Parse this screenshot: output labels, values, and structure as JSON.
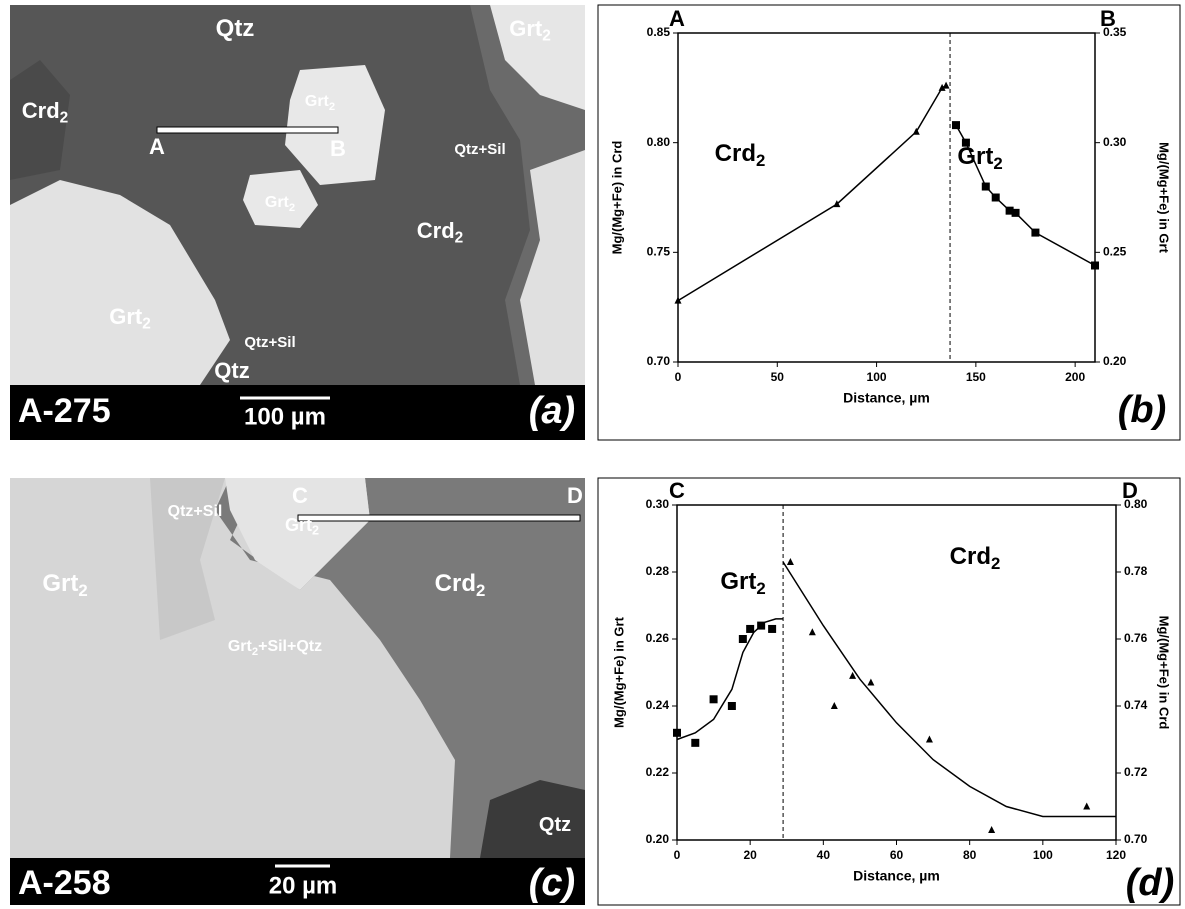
{
  "micrographs": [
    {
      "sample": "A-275",
      "scale_bar": "100 µm",
      "panel_label": "(a)",
      "profile": [
        "A",
        "B"
      ],
      "labels": [
        {
          "text": "Qtz"
        },
        {
          "text": "Grt",
          "sub": "2"
        },
        {
          "text": "Crd",
          "sub": "2"
        },
        {
          "text": "Grt",
          "sub": "2"
        },
        {
          "text": "Qtz+Sil"
        },
        {
          "text": "Grt",
          "sub": "2"
        },
        {
          "text": "Crd",
          "sub": "2"
        },
        {
          "text": "Grt",
          "sub": "2"
        },
        {
          "text": "Qtz+Sil"
        },
        {
          "text": "Qtz"
        }
      ]
    },
    {
      "sample": "A-258",
      "scale_bar": "20 µm",
      "panel_label": "(c)",
      "profile": [
        "C",
        "D"
      ],
      "labels": [
        {
          "text": "Qtz+Sil"
        },
        {
          "text": "Grt",
          "sub": "2"
        },
        {
          "text": "Grt",
          "sub": "2"
        },
        {
          "text": "Crd",
          "sub": "2"
        },
        {
          "text": "Grt",
          "sub": "2",
          "after": "+Sil+Qtz"
        },
        {
          "text": "Qtz"
        }
      ]
    }
  ],
  "chart_data": [
    {
      "type": "scatter",
      "panel_label": "(b)",
      "end_labels": [
        "A",
        "B"
      ],
      "xlabel": "Distance, µm",
      "ylabel": "Mg/(Mg+Fe) in Crd",
      "y2label": "Mg/(Mg+Fe) in Grt",
      "xlim": [
        0,
        210
      ],
      "xticks": [
        0,
        50,
        100,
        150,
        200
      ],
      "ylim": [
        0.7,
        0.85
      ],
      "yticks": [
        {
          "value": 0.7,
          "label": "0.70"
        },
        {
          "value": 0.75,
          "label": "0.75"
        },
        {
          "value": 0.8,
          "label": "0.80"
        },
        {
          "value": 0.85,
          "label": "0.85"
        }
      ],
      "y2lim": [
        0.2,
        0.35
      ],
      "y2ticks": [
        {
          "value": 0.2,
          "label": "0.20"
        },
        {
          "value": 0.25,
          "label": "0.25"
        },
        {
          "value": 0.3,
          "label": "0.30"
        },
        {
          "value": 0.35,
          "label": "0.35"
        }
      ],
      "boundary": 137,
      "annotations": [
        {
          "text": "Crd",
          "sub": "2"
        },
        {
          "text": "Grt",
          "sub": "2"
        }
      ],
      "series": [
        {
          "marker": "triangle",
          "line": true,
          "color": "#000000",
          "x": [
            0,
            80,
            120,
            133,
            135
          ],
          "values": [
            0.728,
            0.772,
            0.805,
            0.825,
            0.826
          ]
        },
        {
          "marker": "square",
          "line": true,
          "axis": "y2",
          "color": "#000000",
          "x": [
            140,
            145,
            155,
            160,
            167,
            170,
            180,
            210
          ],
          "values": [
            0.308,
            0.3,
            0.28,
            0.275,
            0.269,
            0.268,
            0.259,
            0.244
          ]
        }
      ]
    },
    {
      "type": "scatter",
      "panel_label": "(d)",
      "end_labels": [
        "C",
        "D"
      ],
      "xlabel": "Distance,  µm",
      "ylabel": "Mg/(Mg+Fe) in Grt",
      "y2label": "Mg/(Mg+Fe) in Crd",
      "xlim": [
        0,
        120
      ],
      "xticks": [
        0,
        20,
        40,
        60,
        80,
        100,
        120
      ],
      "ylim": [
        0.2,
        0.3
      ],
      "yticks": [
        {
          "value": 0.2,
          "label": "0.20"
        },
        {
          "value": 0.22,
          "label": "0.22"
        },
        {
          "value": 0.24,
          "label": "0.24"
        },
        {
          "value": 0.26,
          "label": "0.26"
        },
        {
          "value": 0.28,
          "label": "0.28"
        },
        {
          "value": 0.3,
          "label": "0.30"
        }
      ],
      "y2lim": [
        0.7,
        0.8
      ],
      "y2ticks": [
        {
          "value": 0.7,
          "label": "0.70"
        },
        {
          "value": 0.72,
          "label": "0.72"
        },
        {
          "value": 0.74,
          "label": "0.74"
        },
        {
          "value": 0.76,
          "label": "0.76"
        },
        {
          "value": 0.78,
          "label": "0.78"
        },
        {
          "value": 0.8,
          "label": "0.80"
        }
      ],
      "boundary": 29,
      "annotations": [
        {
          "text": "Grt",
          "sub": "2"
        },
        {
          "text": "Crd",
          "sub": "2"
        }
      ],
      "series": [
        {
          "marker": "square",
          "line": false,
          "color": "#000000",
          "x": [
            0,
            5,
            10,
            15,
            18,
            20,
            23,
            26
          ],
          "values": [
            0.232,
            0.229,
            0.242,
            0.24,
            0.26,
            0.263,
            0.264,
            0.263
          ]
        },
        {
          "marker": "none",
          "line": true,
          "color": "#000000",
          "x": [
            0,
            5,
            10,
            15,
            18,
            21,
            24,
            27,
            29
          ],
          "values": [
            0.23,
            0.232,
            0.236,
            0.245,
            0.256,
            0.262,
            0.265,
            0.266,
            0.266
          ]
        },
        {
          "marker": "triangle",
          "line": false,
          "axis": "y2",
          "color": "#000000",
          "x": [
            31,
            37,
            43,
            48,
            53,
            69,
            86,
            112
          ],
          "values": [
            0.783,
            0.762,
            0.74,
            0.749,
            0.747,
            0.73,
            0.703,
            0.71
          ]
        },
        {
          "marker": "none",
          "line": true,
          "axis": "y2",
          "color": "#000000",
          "x": [
            29,
            40,
            50,
            60,
            70,
            80,
            90,
            100,
            110,
            120
          ],
          "values": [
            0.783,
            0.764,
            0.748,
            0.735,
            0.724,
            0.716,
            0.71,
            0.707,
            0.707,
            0.707
          ]
        }
      ]
    }
  ]
}
